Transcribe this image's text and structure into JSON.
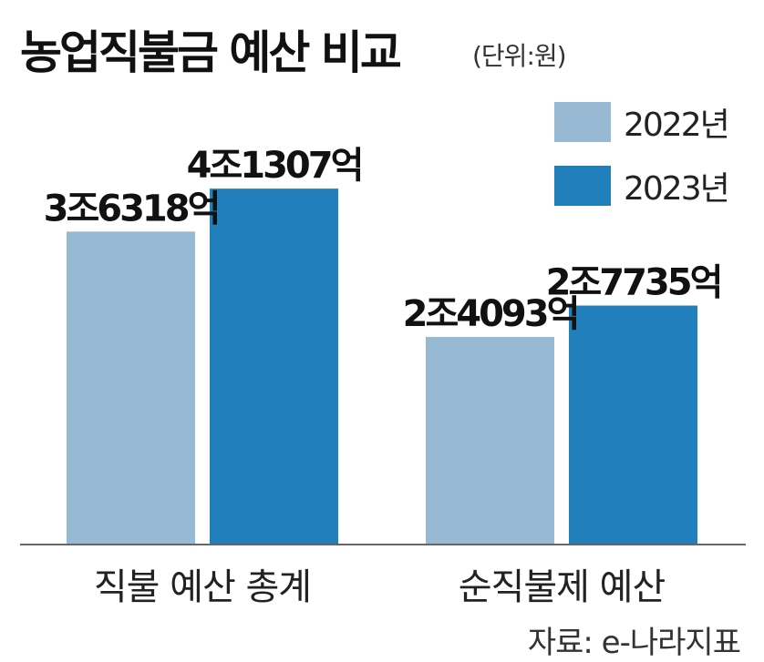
{
  "title": "농업직불금 예산 비교",
  "unit": "(단위:원)",
  "source": "자료: e-나라지표",
  "legend": [
    {
      "label": "2022년",
      "color": "#97b9d4"
    },
    {
      "label": "2023년",
      "color": "#2180bb"
    }
  ],
  "chart_data": {
    "type": "bar",
    "categories": [
      "직불 예산 총계",
      "순직불제 예산"
    ],
    "series": [
      {
        "name": "2022년",
        "color": "#97b9d4",
        "values": [
          36318,
          24093
        ],
        "labels": [
          "3조6318억",
          "2조4093억"
        ]
      },
      {
        "name": "2023년",
        "color": "#2180bb",
        "values": [
          41307,
          27735
        ],
        "labels": [
          "4조1307억",
          "2조7735억"
        ]
      }
    ],
    "unit": "억원",
    "ylim": [
      0,
      46500
    ],
    "grid": false,
    "legend_position": "top-right"
  }
}
